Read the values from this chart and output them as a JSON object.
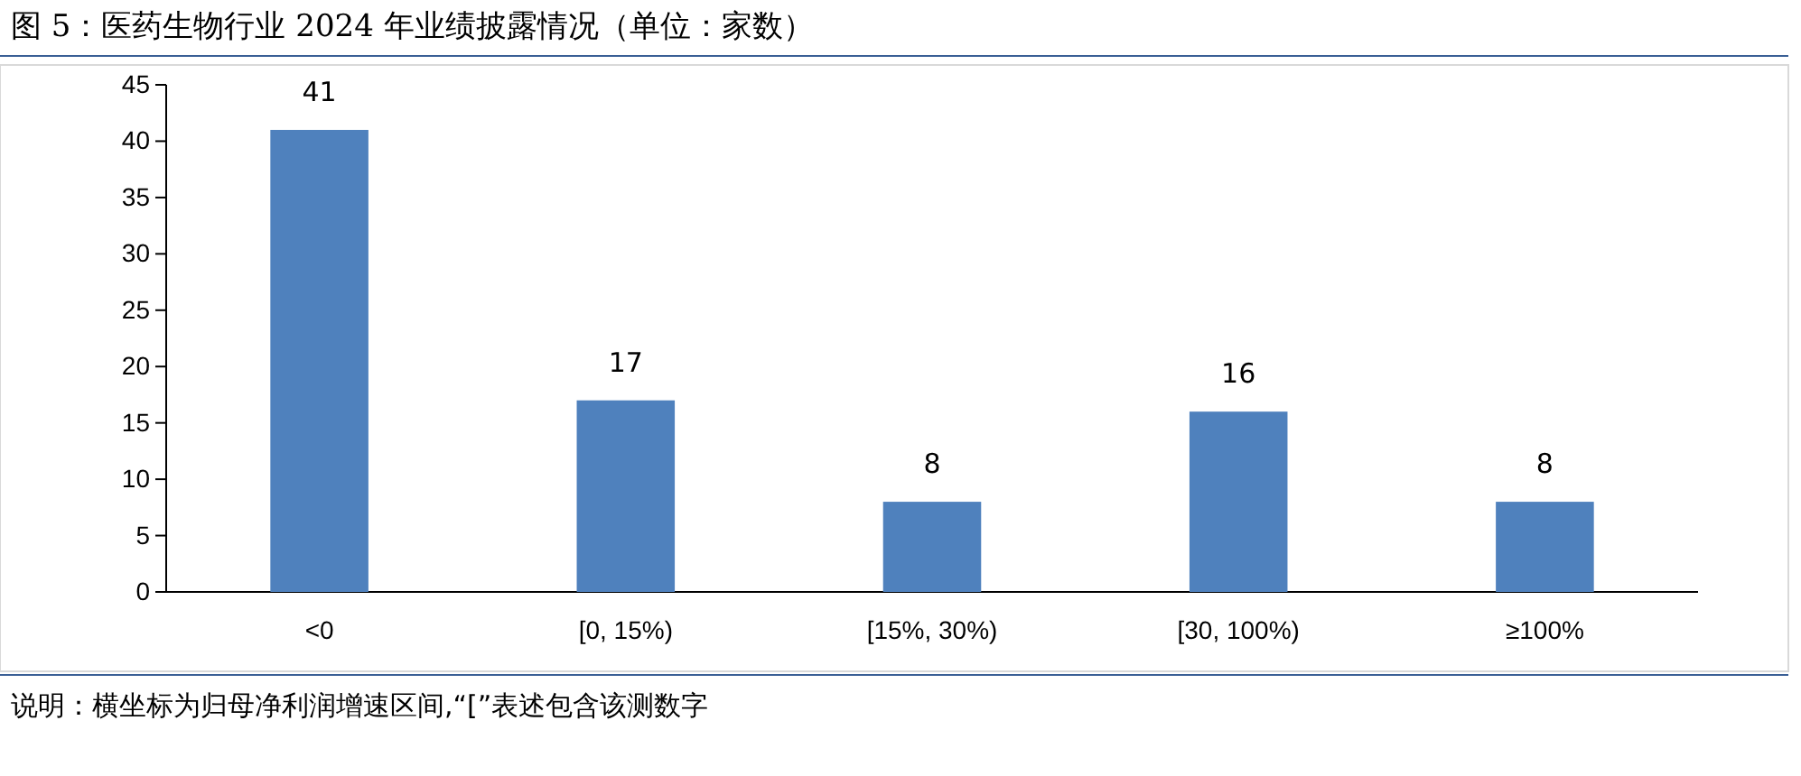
{
  "chart_data": {
    "type": "bar",
    "title": "图 5：医药生物行业 2024 年业绩披露情况（单位：家数）",
    "categories": [
      "<0",
      "[0, 15%)",
      "[15%, 30%)",
      "[30, 100%)",
      "≥100%"
    ],
    "values": [
      41,
      17,
      8,
      16,
      8
    ],
    "color": "#4f81bd",
    "ylim": [
      0,
      45
    ],
    "yticks": [
      0,
      5,
      10,
      15,
      20,
      25,
      30,
      35,
      40,
      45
    ],
    "grid": false,
    "data_labels": true,
    "annotations": [
      "说明：横坐标为归母净利润增速区间,“[”表述包含该测数字"
    ]
  }
}
